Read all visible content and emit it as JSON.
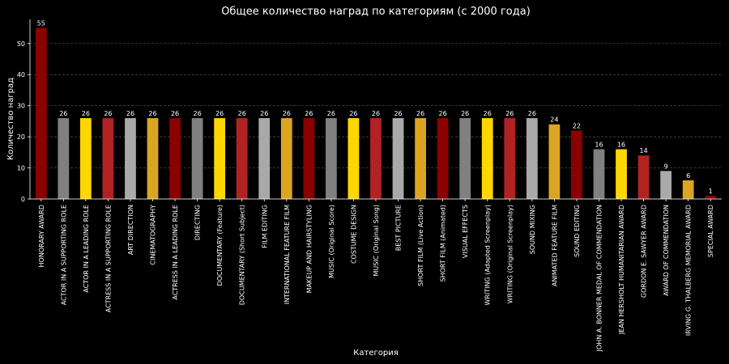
{
  "chart_data": {
    "type": "bar",
    "title": "Общее количество наград по категориям (с 2000 года)",
    "xlabel": "Категория",
    "ylabel": "Количество наград",
    "ylim": [
      0,
      57.75
    ],
    "yticks": [
      0,
      10,
      20,
      30,
      40,
      50
    ],
    "grid": "y",
    "categories": [
      "HONORARY AWARD",
      "ACTOR IN A SUPPORTING ROLE",
      "ACTOR IN A LEADING ROLE",
      "ACTRESS IN A SUPPORTING ROLE",
      "ART DIRECTION",
      "CINEMATOGRAPHY",
      "ACTRESS IN A LEADING ROLE",
      "DIRECTING",
      "DOCUMENTARY (Feature)",
      "DOCUMENTARY (Short Subject)",
      "FILM EDITING",
      "INTERNATIONAL FEATURE FILM",
      "MAKEUP AND HAIRSTYLING",
      "MUSIC (Original Score)",
      "COSTUME DESIGN",
      "MUSIC (Original Song)",
      "BEST PICTURE",
      "SHORT FILM (Live Action)",
      "SHORT FILM (Animated)",
      "VISUAL EFFECTS",
      "WRITING (Adapted Screenplay)",
      "WRITING (Original Screenplay)",
      "SOUND MIXING",
      "ANIMATED FEATURE FILM",
      "SOUND EDITING",
      "JOHN A. BONNER MEDAL OF COMMENDATION",
      "JEAN HERSHOLT HUMANITARIAN AWARD",
      "GORDON E. SAWYER AWARD",
      "AWARD OF COMMENDATION",
      "IRVING G. THALBERG MEMORIAL AWARD",
      "SPECIAL AWARD"
    ],
    "values": [
      55,
      26,
      26,
      26,
      26,
      26,
      26,
      26,
      26,
      26,
      26,
      26,
      26,
      26,
      26,
      26,
      26,
      26,
      26,
      26,
      26,
      26,
      26,
      24,
      22,
      16,
      16,
      14,
      9,
      6,
      1
    ],
    "palette": [
      "#8b0000",
      "#808080",
      "#ffd700",
      "#b22222",
      "#a9a9a9",
      "#daa520"
    ]
  }
}
